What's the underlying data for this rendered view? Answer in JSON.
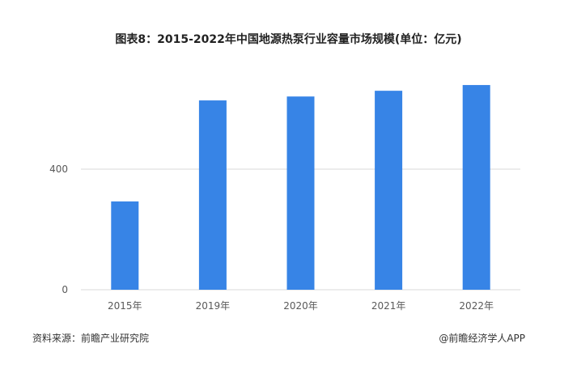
{
  "chart_data": {
    "type": "bar",
    "title": "图表8：2015-2022年中国地源热泵行业容量市场规模(单位：亿元)",
    "categories": [
      "2015年",
      "2019年",
      "2020年",
      "2021年",
      "2022年"
    ],
    "values": [
      293,
      628,
      641,
      660,
      679
    ],
    "yticks": [
      0,
      400
    ],
    "ylim": [
      0,
      800
    ],
    "grid": true,
    "bar_color": "#3784E6",
    "xlabel": "",
    "ylabel": ""
  },
  "footer": {
    "source": "资料来源：前瞻产业研究院",
    "credit": "@前瞻经济学人APP"
  }
}
